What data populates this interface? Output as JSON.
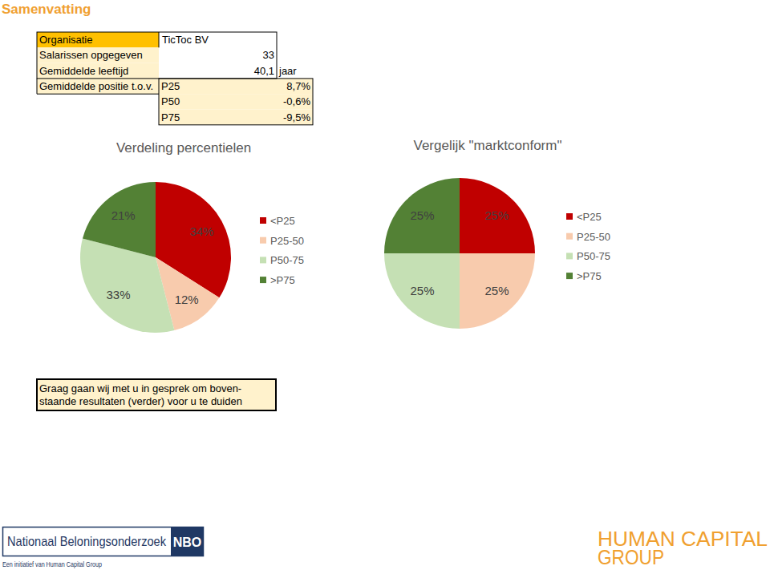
{
  "page": {
    "heading": "Samenvatting",
    "summary": {
      "rows": [
        [
          "Organisatie",
          "TicToc BV"
        ],
        [
          "Salarissen opgegeven",
          "33"
        ],
        [
          "Gemiddelde leeftijd",
          "40,1",
          "jaar"
        ],
        [
          "Gemiddelde positie t.o.v.",
          "P25",
          "8,7%"
        ],
        [
          "P50",
          "-0,6%"
        ],
        [
          "P75",
          "-9,5%"
        ]
      ]
    },
    "note": {
      "lines": [
        "Graag gaan wij met u in gesprek om boven-",
        "staande resultaten (verder) voor u te duiden"
      ]
    },
    "logos": {
      "nbo_name": "Nationaal Beloningsonderzoek",
      "nbo_short": "NBO",
      "nbo_tagline": "Een initiatief van Human Capital Group",
      "hcg_lines": [
        "HUMAN CAPITAL",
        "GROUP"
      ]
    }
  },
  "chart_data": [
    {
      "type": "pie",
      "title": "Verdeling percentielen",
      "categories": [
        "<P25",
        "P25-50",
        "P50-75",
        ">P75"
      ],
      "values": [
        34,
        12,
        33,
        21
      ],
      "value_labels": [
        "34%",
        "12%",
        "33%",
        "21%"
      ],
      "colors": [
        "#c00000",
        "#f8cbad",
        "#c5e0b4",
        "#538135"
      ],
      "data_labels": true,
      "legend": "right"
    },
    {
      "type": "pie",
      "title": "Vergelijk \"marktconform\"",
      "categories": [
        "<P25",
        "P25-50",
        "P50-75",
        ">P75"
      ],
      "values": [
        25,
        25,
        25,
        25
      ],
      "value_labels": [
        "25%",
        "25%",
        "25%",
        "25%"
      ],
      "colors": [
        "#c00000",
        "#f8cbad",
        "#c5e0b4",
        "#538135"
      ],
      "data_labels": true,
      "legend": "right"
    }
  ]
}
